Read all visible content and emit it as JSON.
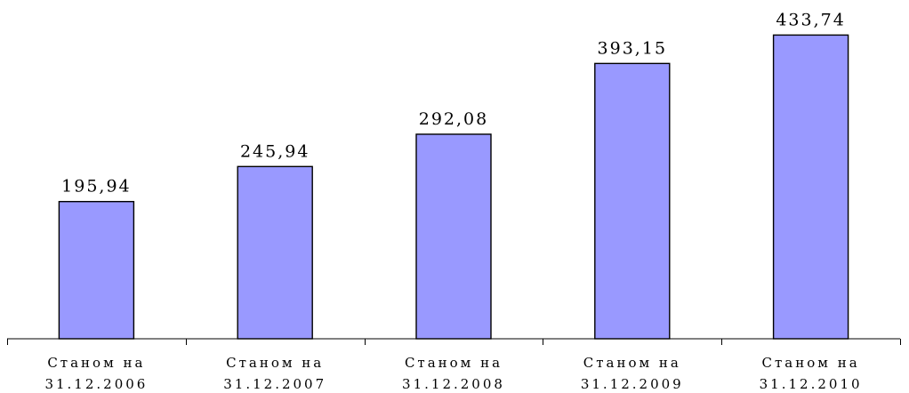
{
  "chart_data": {
    "type": "bar",
    "title": "",
    "xlabel": "",
    "ylabel": "",
    "categories": [
      [
        "Станом на",
        "31.12.2006"
      ],
      [
        "Станом на",
        "31.12.2007"
      ],
      [
        "Станом на",
        "31.12.2008"
      ],
      [
        "Станом на",
        "31.12.2009"
      ],
      [
        "Станом на",
        "31.12.2010"
      ]
    ],
    "values": [
      195.94,
      245.94,
      292.08,
      393.15,
      433.74
    ],
    "value_labels": [
      "195,94",
      "245,94",
      "292,08",
      "393,15",
      "433,74"
    ],
    "ylim": [
      0,
      466
    ],
    "grid": false,
    "legend": "none",
    "colors": {
      "bar_fill": "#9999ff",
      "bar_stroke": "#000000",
      "axis": "#000000"
    }
  }
}
